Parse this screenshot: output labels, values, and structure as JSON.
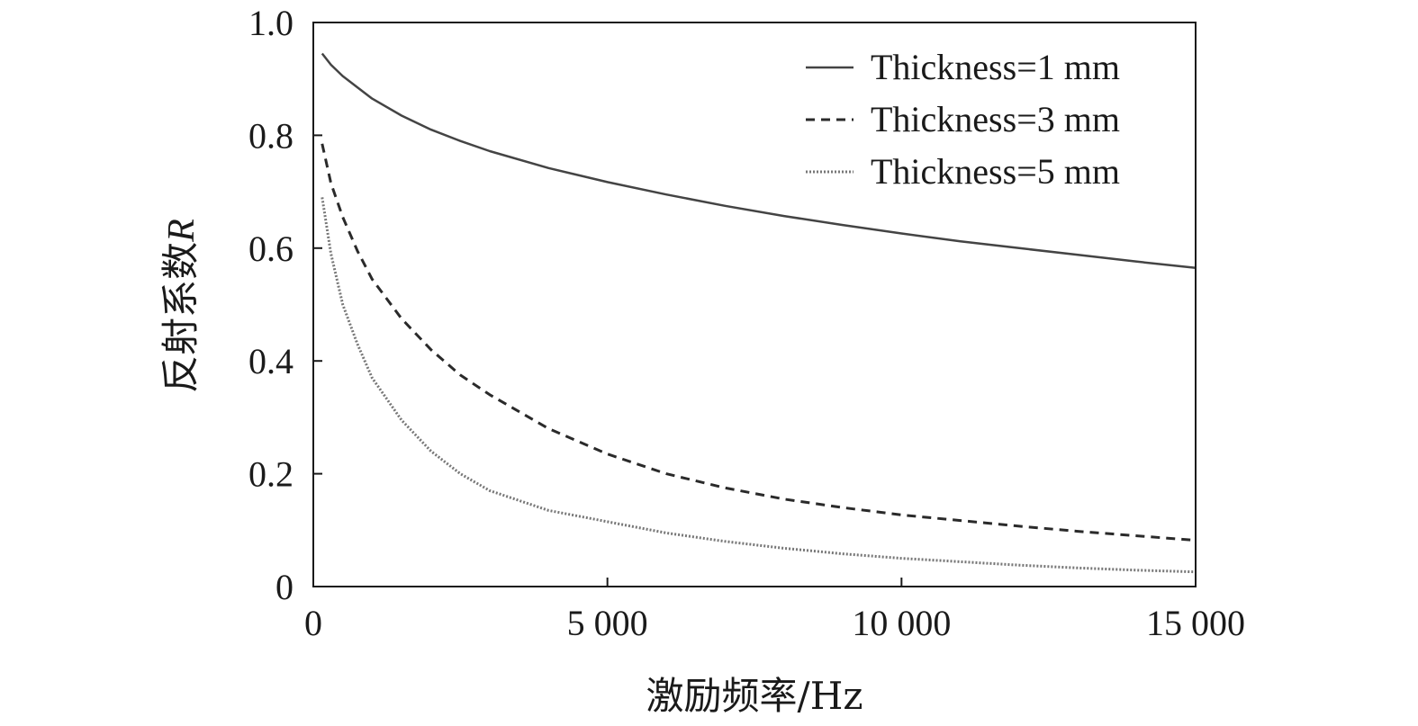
{
  "chart_data": {
    "type": "line",
    "xlabel": "激励频率/Hz",
    "ylabel": "反射系数",
    "ylabel_var": "R",
    "xlim": [
      0,
      15000
    ],
    "ylim": [
      0,
      1.0
    ],
    "x_ticks": [
      0,
      5000,
      10000,
      15000
    ],
    "x_tick_labels": [
      "0",
      "5 000",
      "10 000",
      "15 000"
    ],
    "y_ticks": [
      0,
      0.2,
      0.4,
      0.6,
      0.8,
      1.0
    ],
    "y_tick_labels": [
      "0",
      "0.2",
      "0.4",
      "0.6",
      "0.8",
      "1.0"
    ],
    "grid": false,
    "legend_position": "top-right",
    "series": [
      {
        "name": "Thickness=1 mm",
        "style": "solid",
        "color": "#444444",
        "x": [
          150,
          300,
          500,
          750,
          1000,
          1500,
          2000,
          2500,
          3000,
          4000,
          5000,
          6000,
          7000,
          8000,
          9000,
          10000,
          11000,
          12000,
          13000,
          14000,
          15000
        ],
        "y": [
          0.945,
          0.925,
          0.905,
          0.885,
          0.865,
          0.835,
          0.81,
          0.79,
          0.772,
          0.742,
          0.717,
          0.695,
          0.675,
          0.657,
          0.641,
          0.626,
          0.612,
          0.6,
          0.588,
          0.576,
          0.565
        ]
      },
      {
        "name": "Thickness=3 mm",
        "style": "dashed",
        "color": "#2a2a2a",
        "x": [
          150,
          300,
          500,
          750,
          1000,
          1500,
          2000,
          2500,
          3000,
          4000,
          5000,
          6000,
          7000,
          8000,
          9000,
          10000,
          11000,
          12000,
          13000,
          14000,
          15000
        ],
        "y": [
          0.785,
          0.715,
          0.655,
          0.595,
          0.545,
          0.475,
          0.42,
          0.375,
          0.34,
          0.28,
          0.235,
          0.2,
          0.175,
          0.155,
          0.14,
          0.127,
          0.117,
          0.107,
          0.098,
          0.09,
          0.082
        ]
      },
      {
        "name": "Thickness=5 mm",
        "style": "dotted",
        "color": "#777777",
        "x": [
          150,
          300,
          500,
          750,
          1000,
          1500,
          2000,
          2500,
          3000,
          4000,
          5000,
          6000,
          7000,
          8000,
          9000,
          10000,
          11000,
          12000,
          13000,
          14000,
          15000
        ],
        "y": [
          0.69,
          0.59,
          0.5,
          0.43,
          0.37,
          0.295,
          0.24,
          0.2,
          0.17,
          0.135,
          0.115,
          0.095,
          0.08,
          0.068,
          0.058,
          0.05,
          0.044,
          0.038,
          0.033,
          0.029,
          0.026
        ]
      }
    ]
  }
}
